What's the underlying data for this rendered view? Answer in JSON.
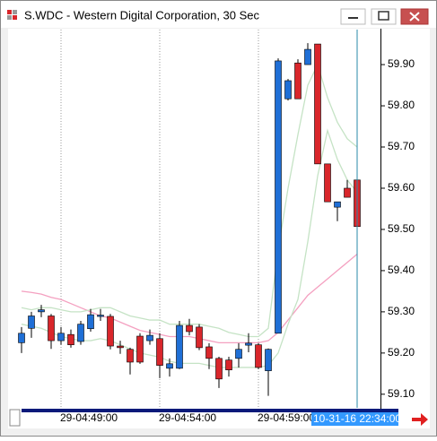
{
  "window_title": "S.WDC - Western Digital Corporation, 30 Sec",
  "chart_data": {
    "type": "candlestick",
    "categories": [
      null,
      null,
      null,
      null,
      "29-04:49:00",
      null,
      null,
      null,
      null,
      null,
      null,
      null,
      null,
      null,
      "29-04:54:00",
      null,
      null,
      null,
      null,
      null,
      null,
      null,
      null,
      null,
      "29-04:59:00",
      null,
      null,
      null,
      null,
      null,
      null,
      null,
      null,
      null,
      null
    ],
    "open": [
      59.225,
      59.26,
      59.3,
      59.29,
      59.23,
      59.245,
      59.228,
      59.259,
      59.292,
      59.289,
      59.217,
      59.209,
      59.241,
      59.23,
      59.235,
      59.163,
      59.163,
      59.267,
      59.263,
      59.215,
      59.187,
      59.183,
      59.187,
      59.219,
      59.22,
      59.157,
      59.248,
      59.817,
      59.904,
      59.9,
      59.95,
      59.659,
      59.554,
      59.6,
      59.62
    ],
    "high": [
      59.263,
      59.3,
      59.317,
      59.295,
      59.263,
      59.257,
      59.278,
      59.307,
      59.307,
      59.295,
      59.23,
      59.213,
      59.248,
      59.257,
      59.248,
      59.187,
      59.278,
      59.283,
      59.27,
      59.224,
      59.191,
      59.191,
      59.224,
      59.248,
      59.224,
      59.211,
      59.915,
      59.865,
      59.913,
      59.952,
      59.95,
      59.659,
      59.567,
      59.62,
      59.659
    ],
    "low": [
      59.2,
      59.237,
      59.287,
      59.21,
      59.22,
      59.213,
      59.22,
      59.252,
      59.278,
      59.209,
      59.198,
      59.148,
      59.174,
      59.22,
      59.139,
      59.143,
      59.161,
      59.243,
      59.207,
      59.161,
      59.115,
      59.143,
      59.165,
      59.202,
      59.161,
      59.096,
      59.248,
      59.813,
      59.817,
      59.9,
      59.659,
      59.567,
      59.52,
      59.578,
      59.507
    ],
    "close": [
      59.248,
      59.29,
      59.305,
      59.23,
      59.248,
      59.22,
      59.27,
      59.293,
      59.292,
      59.217,
      59.213,
      59.178,
      59.178,
      59.243,
      59.17,
      59.174,
      59.267,
      59.252,
      59.213,
      59.187,
      59.137,
      59.159,
      59.209,
      59.224,
      59.165,
      59.209,
      59.909,
      59.861,
      59.817,
      59.937,
      59.659,
      59.567,
      59.567,
      59.578,
      59.507
    ],
    "up_color": "#1f6fd6",
    "down_color": "#d9262b",
    "overlays": [
      {
        "color": "#f4a0c0",
        "values": [
          59.35,
          59.347,
          59.343,
          59.335,
          59.33,
          59.32,
          59.31,
          59.3,
          59.29,
          59.285,
          59.275,
          59.265,
          59.255,
          59.25,
          59.245,
          59.24,
          59.24,
          59.24,
          59.235,
          59.23,
          59.225,
          59.225,
          59.225,
          59.225,
          59.225,
          59.23,
          59.25,
          59.28,
          59.31,
          59.34,
          59.36,
          59.38,
          59.4,
          59.42,
          59.44
        ]
      },
      {
        "color": "#c5e3c5",
        "values": [
          59.31,
          59.305,
          59.31,
          59.31,
          59.305,
          59.3,
          59.3,
          59.305,
          59.31,
          59.31,
          59.3,
          59.29,
          59.285,
          59.28,
          59.28,
          59.27,
          59.27,
          59.27,
          59.27,
          59.265,
          59.26,
          59.25,
          59.245,
          59.24,
          59.24,
          59.26,
          59.45,
          59.6,
          59.73,
          59.85,
          59.9,
          59.82,
          59.76,
          59.72,
          59.7
        ]
      },
      {
        "color": "#c5e3c5",
        "values": [
          59.27,
          59.265,
          59.26,
          59.25,
          59.24,
          59.235,
          59.23,
          59.23,
          59.235,
          59.23,
          59.22,
          59.21,
          59.2,
          59.195,
          59.19,
          59.18,
          59.175,
          59.175,
          59.175,
          59.17,
          59.165,
          59.165,
          59.165,
          59.165,
          59.165,
          59.17,
          59.2,
          59.27,
          59.33,
          59.47,
          59.63,
          59.74,
          59.67,
          59.62,
          59.59
        ]
      }
    ],
    "ylim": [
      59.067,
      59.985
    ],
    "yticks": [
      {
        "value": 59.9,
        "label": "59.90"
      },
      {
        "value": 59.8,
        "label": "59.80"
      },
      {
        "value": 59.7,
        "label": "59.70"
      },
      {
        "value": 59.6,
        "label": "59.60"
      },
      {
        "value": 59.5,
        "label": "59.50"
      },
      {
        "value": 59.4,
        "label": "59.40"
      },
      {
        "value": 59.3,
        "label": "59.30"
      },
      {
        "value": 59.2,
        "label": "59.20"
      },
      {
        "value": 59.1,
        "label": "59.10"
      }
    ],
    "crosshair_label": "10-31-16 22:34:00",
    "grid": true
  }
}
